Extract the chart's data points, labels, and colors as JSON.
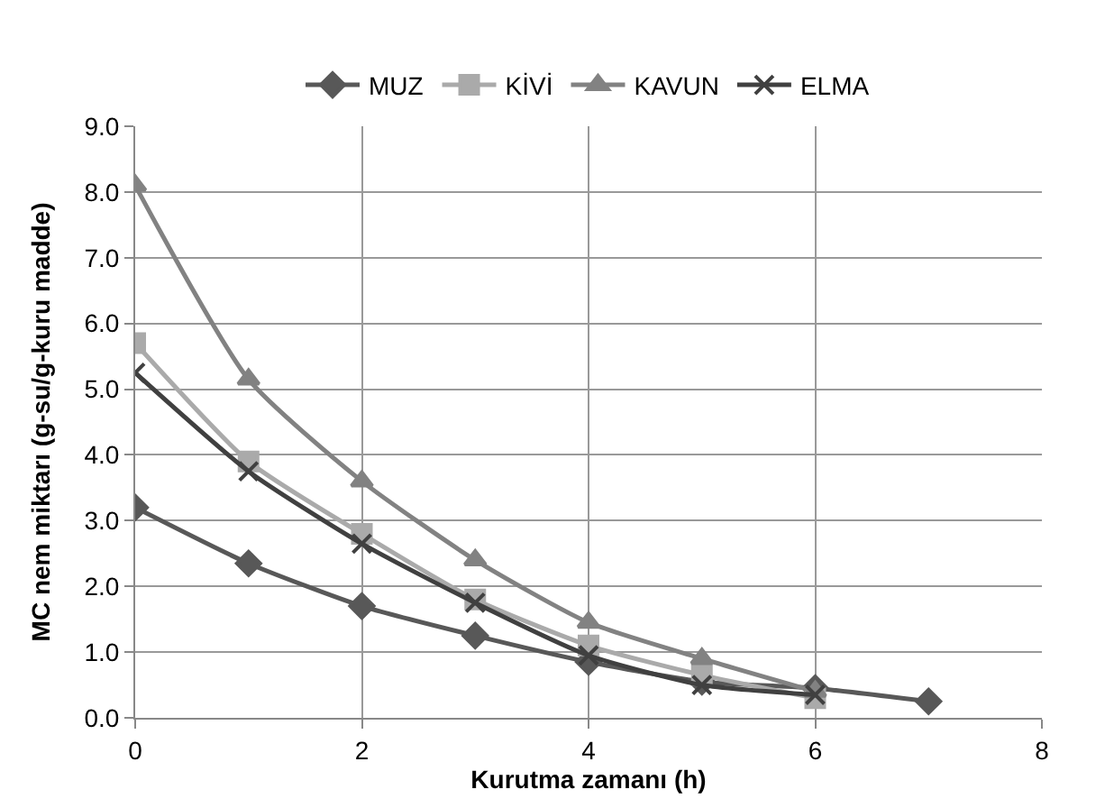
{
  "chart_data": {
    "type": "line",
    "xlabel": "Kurutma zamanı (h)",
    "ylabel": "MC nem miktarı (g-su/g-kuru madde)",
    "xlim": [
      0,
      8
    ],
    "xticks": [
      0,
      2,
      4,
      6,
      8
    ],
    "ylim": [
      0,
      9
    ],
    "yticks": [
      {
        "value": 0,
        "label": "0.0"
      },
      {
        "value": 1,
        "label": "1.0"
      },
      {
        "value": 2,
        "label": "2.0"
      },
      {
        "value": 3,
        "label": "3.0"
      },
      {
        "value": 4,
        "label": "4.0"
      },
      {
        "value": 5,
        "label": "5.0"
      },
      {
        "value": 6,
        "label": "6.0"
      },
      {
        "value": 7,
        "label": "7.0"
      },
      {
        "value": 8,
        "label": "8.0"
      },
      {
        "value": 9,
        "label": "9.0"
      }
    ],
    "grid": true,
    "legend": "top",
    "series": [
      {
        "name": "MUZ",
        "color": "#585858",
        "marker": "diamond",
        "x": [
          0,
          1,
          2,
          3,
          4,
          5,
          6,
          7
        ],
        "values": [
          3.2,
          2.35,
          1.7,
          1.25,
          0.85,
          0.55,
          0.45,
          0.25
        ]
      },
      {
        "name": "KİVİ",
        "color": "#aaaaaa",
        "marker": "square",
        "x": [
          0,
          1,
          2,
          3,
          4,
          5,
          6
        ],
        "values": [
          5.7,
          3.9,
          2.8,
          1.8,
          1.1,
          0.65,
          0.3
        ]
      },
      {
        "name": "KAVUN",
        "color": "#828282",
        "marker": "triangle",
        "x": [
          0,
          1,
          2,
          3,
          4,
          5,
          6
        ],
        "values": [
          8.1,
          5.15,
          3.6,
          2.4,
          1.45,
          0.9,
          0.4
        ]
      },
      {
        "name": "ELMA",
        "color": "#404040",
        "marker": "cross",
        "x": [
          0,
          1,
          2,
          3,
          4,
          5,
          6
        ],
        "values": [
          5.25,
          3.75,
          2.65,
          1.75,
          0.95,
          0.5,
          0.35
        ]
      }
    ]
  }
}
